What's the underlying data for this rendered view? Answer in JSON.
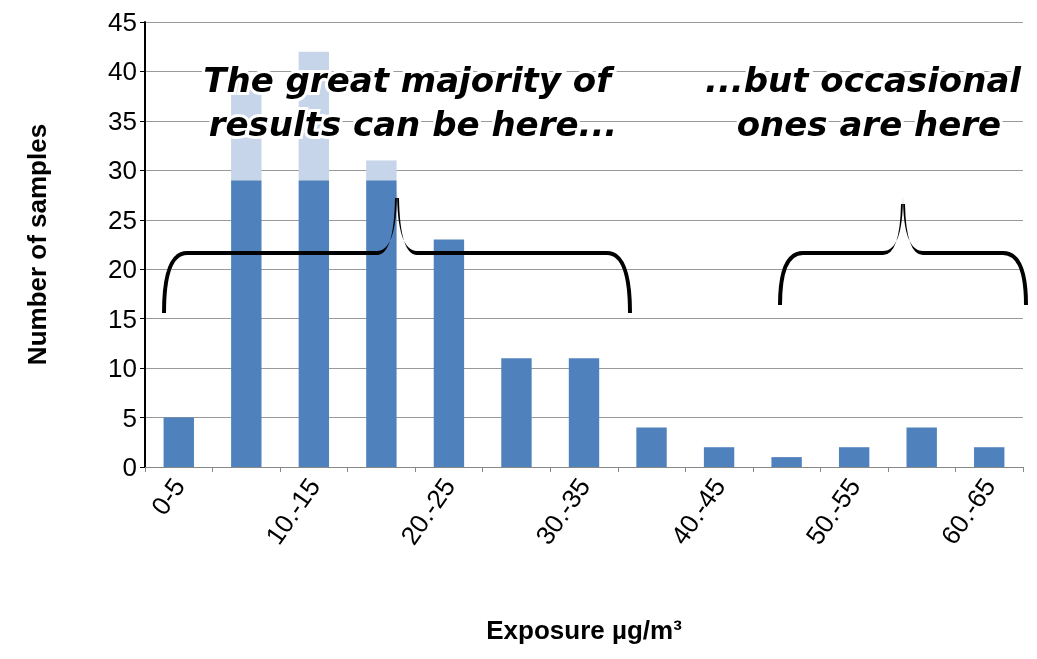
{
  "chart_data": {
    "type": "bar",
    "xlabel": "Exposure µg/m³",
    "ylabel": "Number of samples",
    "categories": [
      "0-5",
      null,
      "10.-15",
      null,
      "20.-25",
      null,
      "30.-35",
      null,
      "40.-45",
      null,
      "50.-55",
      null,
      "60.-65"
    ],
    "series": [
      {
        "color": "#4f81bd",
        "values": [
          5,
          29,
          29,
          29,
          23,
          11,
          11,
          4,
          2,
          1,
          2,
          4,
          2
        ]
      },
      {
        "color": "#c6d5ea",
        "values": [
          null,
          10,
          13,
          2,
          null,
          null,
          null,
          null,
          null,
          null,
          null,
          null,
          null
        ]
      }
    ],
    "stacked": true,
    "ylim": [
      0,
      45
    ],
    "yticks": [
      0,
      5,
      10,
      15,
      20,
      25,
      30,
      35,
      40,
      45
    ],
    "grid": "y",
    "annotations": [
      "The great majority of results can be here...",
      "...but occasional ones are here"
    ]
  }
}
